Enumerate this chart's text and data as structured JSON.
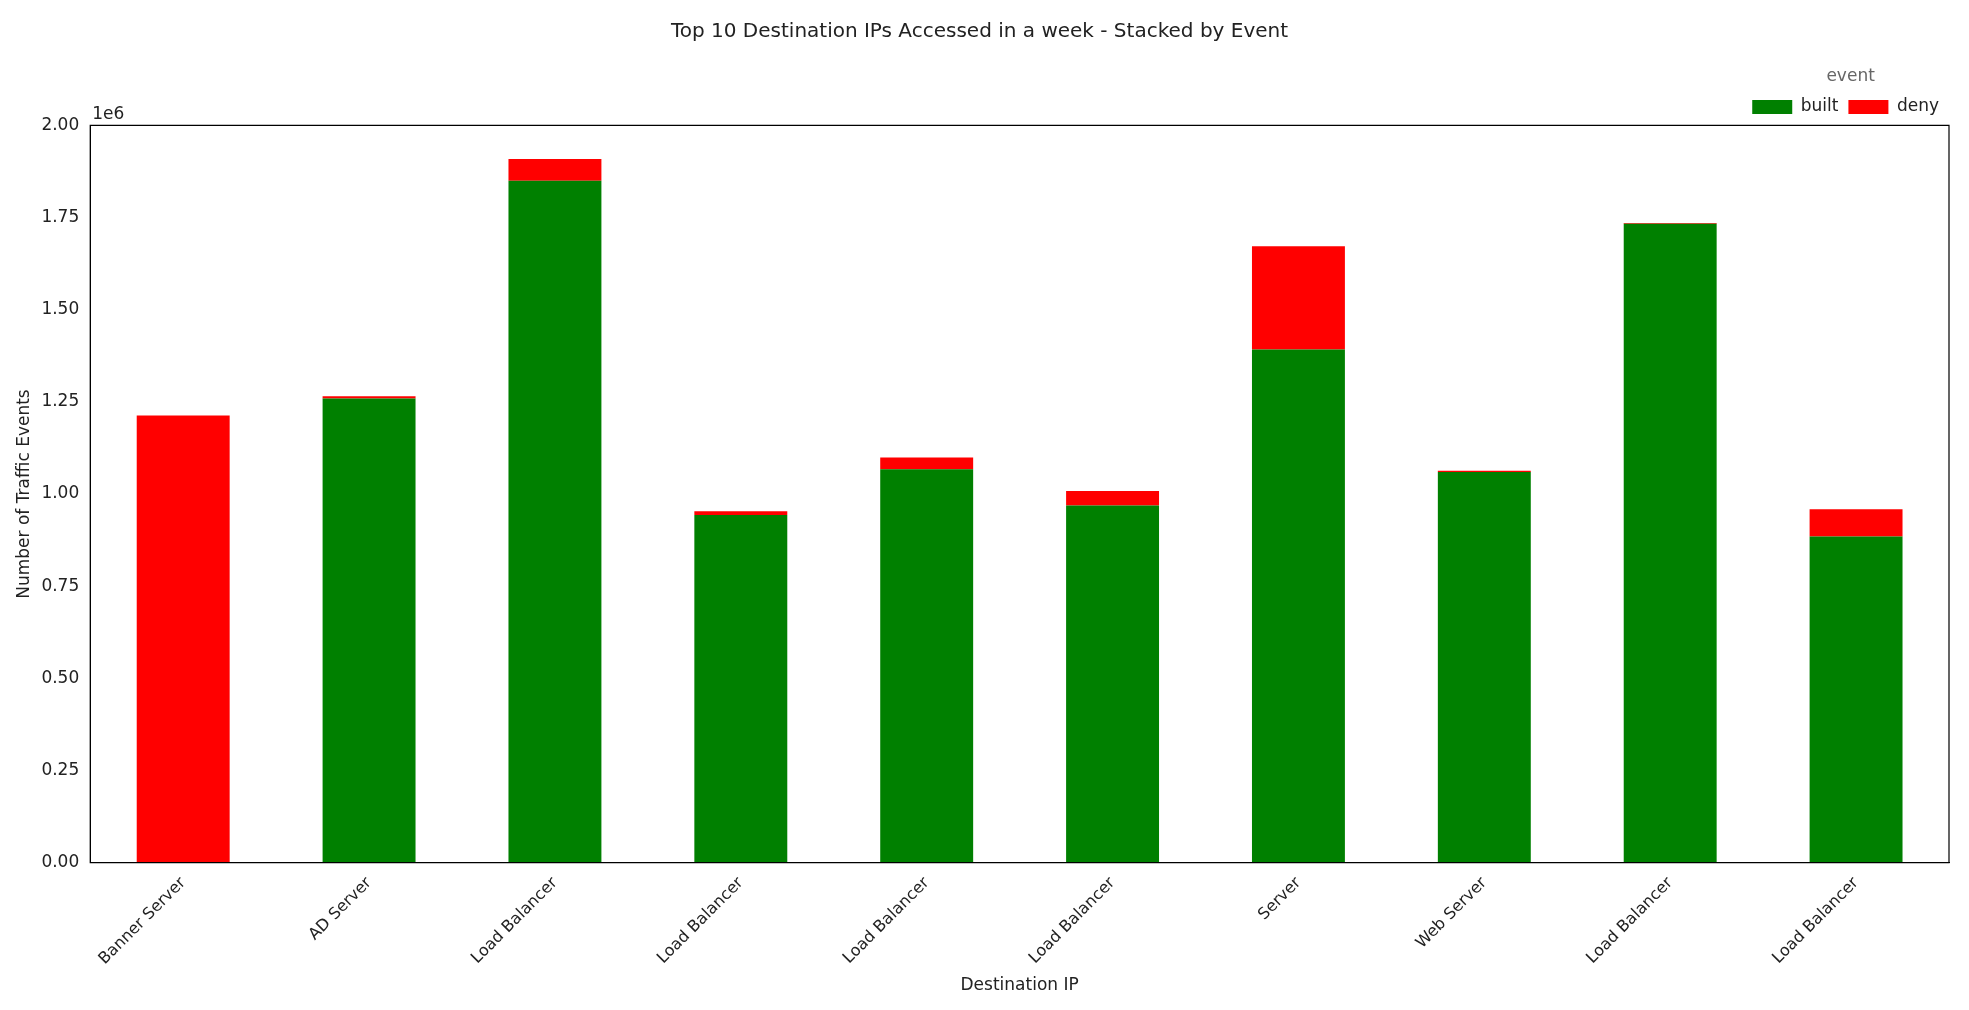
{
  "chart_data": {
    "type": "bar",
    "title": "Top 10 Destination IPs Accessed in a week - Stacked by Event",
    "xlabel": "Destination IP",
    "ylabel": "Number of Traffic Events",
    "legend_title": "event",
    "annotations": [
      "1e6"
    ],
    "categories": [
      "Banner Server",
      "AD Server",
      "Load Balancer",
      "Load Balancer",
      "Load Balancer",
      "Load Balancer",
      "Server",
      "Web Server",
      "Load Balancer",
      "Load Balancer"
    ],
    "series": [
      {
        "name": "built",
        "color": "#008000",
        "values": [
          0,
          1.259,
          1.85,
          0.943,
          1.067,
          0.969,
          1.392,
          1.06,
          1.733,
          0.885
        ]
      },
      {
        "name": "deny",
        "color": "#ff0000",
        "values": [
          1.213,
          0.006,
          0.059,
          0.01,
          0.032,
          0.039,
          0.28,
          0.003,
          0.002,
          0.074
        ]
      }
    ],
    "stacked": true,
    "ylim": [
      0,
      2
    ],
    "yticks": [
      {
        "value": 0,
        "label": "0.00"
      },
      {
        "value": 0.25,
        "label": "0.25"
      },
      {
        "value": 0.5,
        "label": "0.50"
      },
      {
        "value": 0.75,
        "label": "0.75"
      },
      {
        "value": 1,
        "label": "1.00"
      },
      {
        "value": 1.25,
        "label": "1.25"
      },
      {
        "value": 1.5,
        "label": "1.50"
      },
      {
        "value": 1.75,
        "label": "1.75"
      },
      {
        "value": 2,
        "label": "2.00"
      }
    ],
    "grid": false,
    "legend": "top right"
  }
}
